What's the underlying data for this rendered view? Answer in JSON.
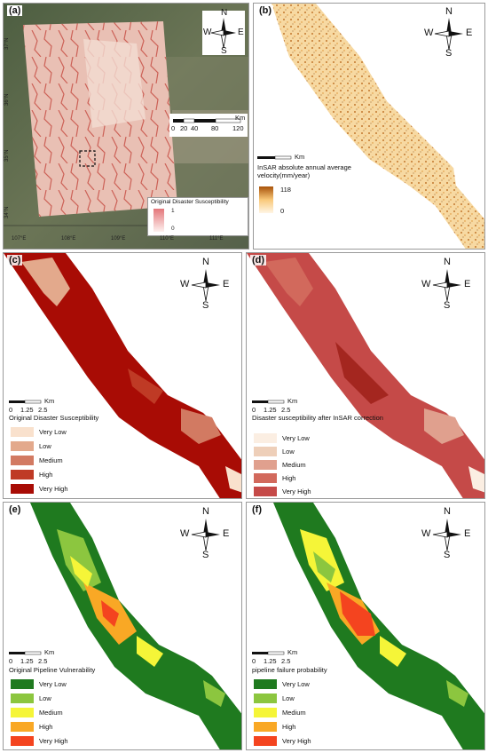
{
  "panels": {
    "a": {
      "label": "(a)",
      "compass": {
        "n": "N",
        "s": "S",
        "e": "E",
        "w": "W"
      },
      "scale": {
        "unit": "Km",
        "ticks": [
          "0",
          "20",
          "40",
          "80",
          "120"
        ]
      },
      "legend": {
        "title": "Original Disaster Susceptibility",
        "max": "1",
        "min": "0"
      },
      "lon_ticks": [
        "107°E",
        "108°E",
        "109°E",
        "110°E",
        "111°E"
      ],
      "lat_ticks": [
        "37°N",
        "36°N",
        "35°N",
        "34°N"
      ]
    },
    "b": {
      "label": "(b)",
      "compass": {
        "n": "N",
        "s": "S",
        "e": "E",
        "w": "W"
      },
      "scale": {
        "unit": "Km"
      },
      "legend": {
        "title": "InSAR absolute annual average velocity(mm/year)",
        "max": "118",
        "min": "0"
      }
    },
    "c": {
      "label": "(c)",
      "compass": {
        "n": "N",
        "s": "S",
        "e": "E",
        "w": "W"
      },
      "scale": {
        "unit": "Km",
        "ticks": [
          "0",
          "1.25",
          "2.5"
        ]
      },
      "legend": {
        "title": "Original Disaster Susceptibility",
        "items": [
          {
            "label": "Very Low",
            "color": "#f9e1cd"
          },
          {
            "label": "Low",
            "color": "#e3a98c"
          },
          {
            "label": "Medium",
            "color": "#d27a62"
          },
          {
            "label": "High",
            "color": "#bf3a25"
          },
          {
            "label": "Very High",
            "color": "#a80c05"
          }
        ]
      }
    },
    "d": {
      "label": "(d)",
      "compass": {
        "n": "N",
        "s": "S",
        "e": "E",
        "w": "W"
      },
      "scale": {
        "unit": "Km",
        "ticks": [
          "0",
          "1.25",
          "2.5"
        ]
      },
      "legend": {
        "title": "Disaster susceptibility after InSAR correction",
        "items": [
          {
            "label": "Very Low",
            "color": "#fbeee2"
          },
          {
            "label": "Low",
            "color": "#eecfb9"
          },
          {
            "label": "Medium",
            "color": "#e0a08e"
          },
          {
            "label": "High",
            "color": "#d2695c"
          },
          {
            "label": "Very High",
            "color": "#c54a48"
          }
        ]
      }
    },
    "e": {
      "label": "(e)",
      "compass": {
        "n": "N",
        "s": "S",
        "e": "E",
        "w": "W"
      },
      "scale": {
        "unit": "Km",
        "ticks": [
          "0",
          "1.25",
          "2.5"
        ]
      },
      "legend": {
        "title": "Original Pipeline Vulnerability",
        "items": [
          {
            "label": "Very Low",
            "color": "#1f7a1f"
          },
          {
            "label": "Low",
            "color": "#8cc63f"
          },
          {
            "label": "Medium",
            "color": "#f5f538"
          },
          {
            "label": "High",
            "color": "#f9a825"
          },
          {
            "label": "Very High",
            "color": "#f4441f"
          }
        ]
      }
    },
    "f": {
      "label": "(f)",
      "compass": {
        "n": "N",
        "s": "S",
        "e": "E",
        "w": "W"
      },
      "scale": {
        "unit": "Km",
        "ticks": [
          "0",
          "1.25",
          "2.5"
        ]
      },
      "legend": {
        "title": "pipeline failure probability",
        "items": [
          {
            "label": "Very Low",
            "color": "#1f7a1f"
          },
          {
            "label": "Low",
            "color": "#8cc63f"
          },
          {
            "label": "Medium",
            "color": "#f5f538"
          },
          {
            "label": "High",
            "color": "#f9a825"
          },
          {
            "label": "Very High",
            "color": "#f4441f"
          }
        ]
      }
    }
  }
}
